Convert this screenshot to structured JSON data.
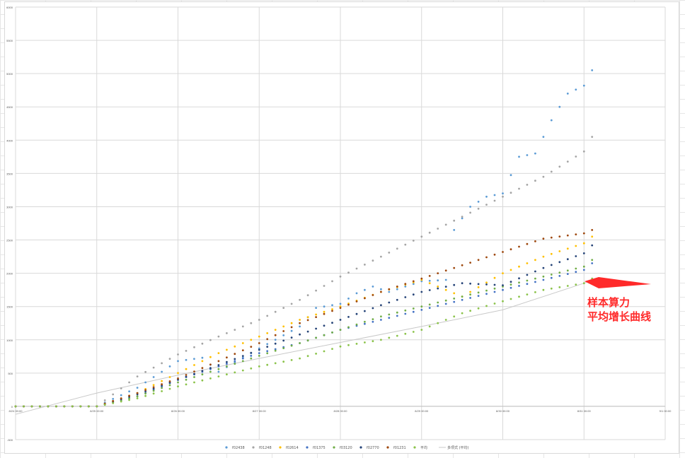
{
  "chart_data": {
    "type": "scatter",
    "title": "",
    "xlabel": "",
    "ylabel": "",
    "x_ticks": [
      "8/24 00:00",
      "8/25 00:00",
      "8/26 00:00",
      "8/27 00:00",
      "8/28 00:00",
      "8/29 00:00",
      "8/30 00:00",
      "8/31 00:00",
      "9/1 00:00"
    ],
    "y_ticks": [
      "-500",
      "0",
      "500",
      "1000",
      "1500",
      "2000",
      "2500",
      "3000",
      "3500",
      "4000",
      "4500",
      "5000",
      "5500",
      "6000"
    ],
    "ylim": [
      -500,
      6000
    ],
    "legend_position": "bottom",
    "series": [
      {
        "name": "f02438",
        "color": "#5b9bd5",
        "values": [
          [
            0,
            0
          ],
          [
            0.5,
            0
          ],
          [
            1,
            0
          ],
          [
            1.5,
            280
          ],
          [
            2,
            680
          ],
          [
            2.3,
            730
          ],
          [
            2.5,
            520
          ],
          [
            3,
            870
          ],
          [
            3.5,
            1200
          ],
          [
            3.7,
            1480
          ],
          [
            4,
            1540
          ],
          [
            4.2,
            1700
          ],
          [
            4.4,
            1800
          ],
          [
            4.6,
            1720
          ],
          [
            4.8,
            1800
          ],
          [
            5,
            1880
          ],
          [
            5.3,
            1900
          ],
          [
            5.4,
            2650
          ],
          [
            5.6,
            3000
          ],
          [
            5.8,
            3150
          ],
          [
            6,
            3200
          ],
          [
            6.2,
            3750
          ],
          [
            6.4,
            3800
          ],
          [
            6.6,
            4300
          ],
          [
            6.8,
            4700
          ],
          [
            7,
            4820
          ],
          [
            7.1,
            5050
          ]
        ]
      },
      {
        "name": "f01248",
        "color": "#a5a5a5",
        "values": [
          [
            0,
            0
          ],
          [
            0.5,
            0
          ],
          [
            1,
            0
          ],
          [
            1.5,
            450
          ],
          [
            2,
            780
          ],
          [
            2.5,
            1050
          ],
          [
            3,
            1300
          ],
          [
            3.5,
            1600
          ],
          [
            4,
            1950
          ],
          [
            4.5,
            2250
          ],
          [
            5,
            2550
          ],
          [
            5.5,
            2850
          ],
          [
            6,
            3150
          ],
          [
            6.5,
            3450
          ],
          [
            7,
            3830
          ],
          [
            7.1,
            4050
          ]
        ]
      },
      {
        "name": "f02614",
        "color": "#ffc000",
        "values": [
          [
            0,
            0
          ],
          [
            0.5,
            0
          ],
          [
            1,
            0
          ],
          [
            1.5,
            200
          ],
          [
            2,
            500
          ],
          [
            2.5,
            800
          ],
          [
            3,
            1050
          ],
          [
            3.5,
            1300
          ],
          [
            4,
            1500
          ],
          [
            4.5,
            1720
          ],
          [
            5,
            1900
          ],
          [
            5.5,
            1650
          ],
          [
            6,
            2000
          ],
          [
            6.5,
            2250
          ],
          [
            7,
            2450
          ],
          [
            7.1,
            2550
          ]
        ]
      },
      {
        "name": "f01375",
        "color": "#4472c4",
        "values": [
          [
            0,
            0
          ],
          [
            0.5,
            0
          ],
          [
            1,
            0
          ],
          [
            1.5,
            150
          ],
          [
            2,
            400
          ],
          [
            2.5,
            600
          ],
          [
            3,
            800
          ],
          [
            3.5,
            950
          ],
          [
            4,
            1150
          ],
          [
            4.5,
            1300
          ],
          [
            5,
            1450
          ],
          [
            5.5,
            1600
          ],
          [
            6,
            1750
          ],
          [
            6.5,
            1900
          ],
          [
            7,
            2050
          ],
          [
            7.1,
            2150
          ]
        ]
      },
      {
        "name": "f03120",
        "color": "#70ad47",
        "values": [
          [
            0,
            0
          ],
          [
            0.5,
            0
          ],
          [
            1,
            0
          ],
          [
            1.5,
            150
          ],
          [
            2,
            360
          ],
          [
            2.5,
            560
          ],
          [
            3,
            760
          ],
          [
            3.5,
            950
          ],
          [
            4,
            1150
          ],
          [
            4.5,
            1350
          ],
          [
            5,
            1500
          ],
          [
            5.5,
            1650
          ],
          [
            6,
            1800
          ],
          [
            6.5,
            1950
          ],
          [
            7,
            2100
          ],
          [
            7.1,
            2200
          ]
        ]
      },
      {
        "name": "f02770",
        "color": "#264478",
        "values": [
          [
            0,
            0
          ],
          [
            0.5,
            0
          ],
          [
            1,
            0
          ],
          [
            1.5,
            180
          ],
          [
            2,
            400
          ],
          [
            2.5,
            620
          ],
          [
            3,
            850
          ],
          [
            3.5,
            1080
          ],
          [
            4,
            1300
          ],
          [
            4.5,
            1520
          ],
          [
            5,
            1720
          ],
          [
            5.5,
            1850
          ],
          [
            6,
            1820
          ],
          [
            6.5,
            2080
          ],
          [
            7,
            2300
          ],
          [
            7.1,
            2420
          ]
        ]
      },
      {
        "name": "f01231",
        "color": "#9e480e",
        "values": [
          [
            0,
            0
          ],
          [
            0.5,
            0
          ],
          [
            1,
            0
          ],
          [
            1.5,
            200
          ],
          [
            2,
            420
          ],
          [
            2.5,
            680
          ],
          [
            3,
            950
          ],
          [
            3.5,
            1250
          ],
          [
            4,
            1480
          ],
          [
            4.5,
            1720
          ],
          [
            5,
            1920
          ],
          [
            5.5,
            2120
          ],
          [
            6,
            2320
          ],
          [
            6.5,
            2520
          ],
          [
            7,
            2600
          ],
          [
            7.1,
            2650
          ]
        ]
      },
      {
        "name": "平均",
        "color": "#8bc34a",
        "values": [
          [
            0,
            0
          ],
          [
            0.5,
            0
          ],
          [
            1,
            0
          ],
          [
            1.5,
            120
          ],
          [
            2,
            300
          ],
          [
            2.5,
            450
          ],
          [
            3,
            600
          ],
          [
            3.5,
            720
          ],
          [
            4,
            900
          ],
          [
            4.5,
            1000
          ],
          [
            5,
            1150
          ],
          [
            5.5,
            1400
          ],
          [
            6,
            1580
          ],
          [
            6.5,
            1750
          ],
          [
            7,
            1850
          ],
          [
            7.1,
            1920
          ]
        ]
      }
    ],
    "trendline": {
      "name": "多项式 (平均)",
      "color": "#c9c9c9",
      "values": [
        [
          0,
          -120
        ],
        [
          1,
          200
        ],
        [
          2,
          470
        ],
        [
          3,
          720
        ],
        [
          4,
          960
        ],
        [
          5,
          1200
        ],
        [
          6,
          1450
        ],
        [
          7,
          1850
        ],
        [
          7.1,
          1900
        ]
      ]
    }
  },
  "legend": [
    "f02438",
    "f01248",
    "f02614",
    "f01375",
    "f03120",
    "f02770",
    "f01231",
    "平均",
    "多项式 (平均)"
  ],
  "annotation": {
    "line1": "样本算力",
    "line2": "平均增长曲线",
    "arrow_color": "#ff2a2a"
  }
}
